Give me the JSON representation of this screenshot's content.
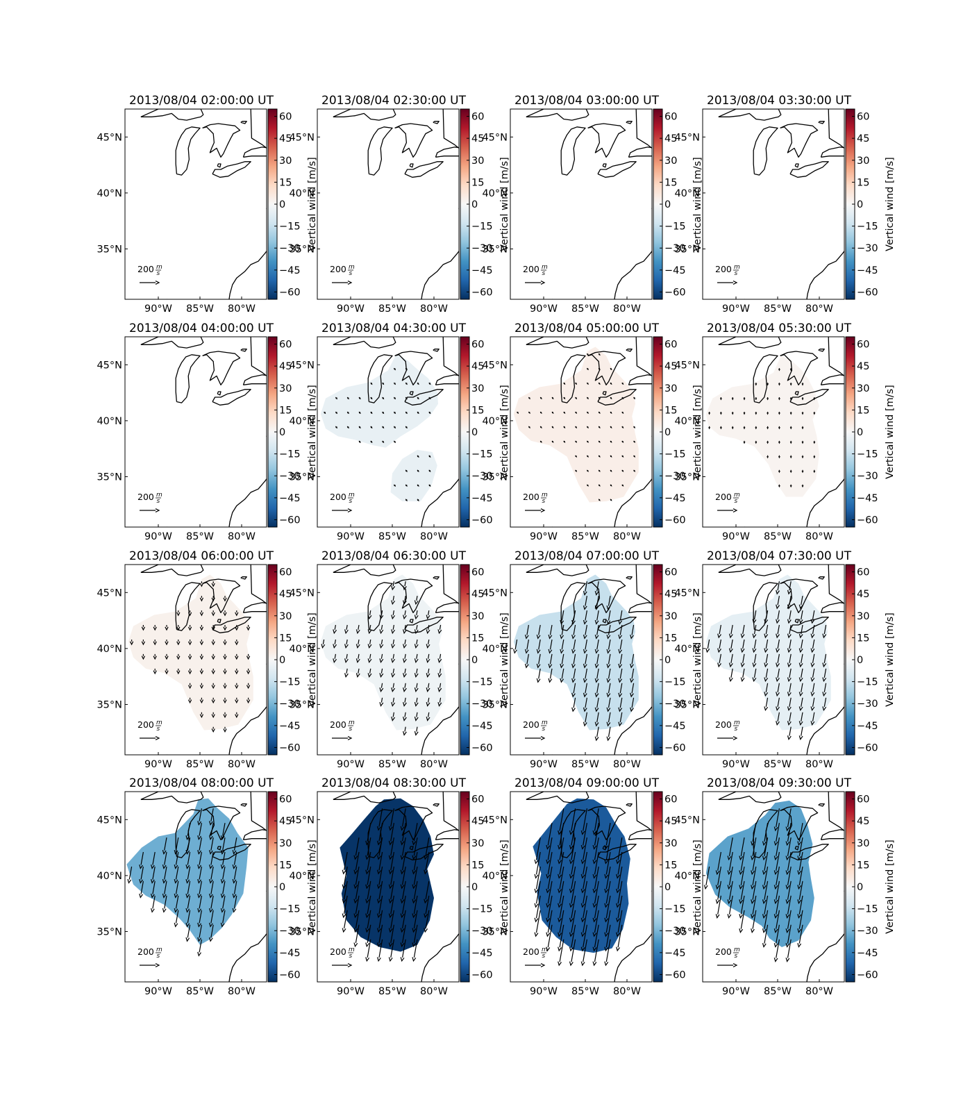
{
  "figure": {
    "colorbar": {
      "label": "Vertical wind [m/s]",
      "ticks": [
        "60",
        "45",
        "30",
        "15",
        "0",
        "−15",
        "−30",
        "−45",
        "−60"
      ],
      "range": [
        -65,
        65
      ],
      "colormap": "RdBu_r"
    },
    "x_ticks": [
      "90°W",
      "85°W",
      "80°W"
    ],
    "y_ticks": [
      "45°N",
      "40°N",
      "35°N"
    ],
    "scale_label": "200",
    "scale_unit_num": "m",
    "scale_unit_den": "s",
    "colors": {
      "coast": "#000000",
      "arrow": "#000000",
      "frame": "#000000"
    }
  },
  "chart_data": [
    {
      "type": "heatmap",
      "title": "2013/08/04 02:00:00 UT",
      "vertical_wind_m_s": null,
      "arrow_speed_m_s": 0
    },
    {
      "type": "heatmap",
      "title": "2013/08/04 02:30:00 UT",
      "vertical_wind_m_s": null,
      "arrow_speed_m_s": 0
    },
    {
      "type": "heatmap",
      "title": "2013/08/04 03:00:00 UT",
      "vertical_wind_m_s": null,
      "arrow_speed_m_s": 0
    },
    {
      "type": "heatmap",
      "title": "2013/08/04 03:30:00 UT",
      "vertical_wind_m_s": null,
      "arrow_speed_m_s": 0
    },
    {
      "type": "heatmap",
      "title": "2013/08/04 04:00:00 UT",
      "vertical_wind_m_s": null,
      "arrow_speed_m_s": 0
    },
    {
      "type": "heatmap",
      "title": "2013/08/04 04:30:00 UT",
      "vertical_wind_m_s": -5,
      "arrow_speed_m_s": 20,
      "arrow_direction": "southeast"
    },
    {
      "type": "heatmap",
      "title": "2013/08/04 05:00:00 UT",
      "vertical_wind_m_s": 4,
      "arrow_speed_m_s": 18,
      "arrow_direction": "southeast"
    },
    {
      "type": "heatmap",
      "title": "2013/08/04 05:30:00 UT",
      "vertical_wind_m_s": 2,
      "arrow_speed_m_s": 22,
      "arrow_direction": "south"
    },
    {
      "type": "heatmap",
      "title": "2013/08/04 06:00:00 UT",
      "vertical_wind_m_s": 3,
      "arrow_speed_m_s": 50,
      "arrow_direction": "south"
    },
    {
      "type": "heatmap",
      "title": "2013/08/04 06:30:00 UT",
      "vertical_wind_m_s": -3,
      "arrow_speed_m_s": 85,
      "arrow_direction": "south-southwest"
    },
    {
      "type": "heatmap",
      "title": "2013/08/04 07:00:00 UT",
      "vertical_wind_m_s": -15,
      "arrow_speed_m_s": 140,
      "arrow_direction": "south-southwest"
    },
    {
      "type": "heatmap",
      "title": "2013/08/04 07:30:00 UT",
      "vertical_wind_m_s": -6,
      "arrow_speed_m_s": 130,
      "arrow_direction": "south-southwest"
    },
    {
      "type": "heatmap",
      "title": "2013/08/04 08:00:00 UT",
      "vertical_wind_m_s": -32,
      "arrow_speed_m_s": 170,
      "arrow_direction": "south-southwest"
    },
    {
      "type": "heatmap",
      "title": "2013/08/04 08:30:00 UT",
      "vertical_wind_m_s": -64,
      "arrow_speed_m_s": 225,
      "arrow_direction": "south-southwest"
    },
    {
      "type": "heatmap",
      "title": "2013/08/04 09:00:00 UT",
      "vertical_wind_m_s": -55,
      "arrow_speed_m_s": 270,
      "arrow_direction": "south-southwest"
    },
    {
      "type": "heatmap",
      "title": "2013/08/04 09:30:00 UT",
      "vertical_wind_m_s": -35,
      "arrow_speed_m_s": 230,
      "arrow_direction": "south-southwest"
    }
  ]
}
